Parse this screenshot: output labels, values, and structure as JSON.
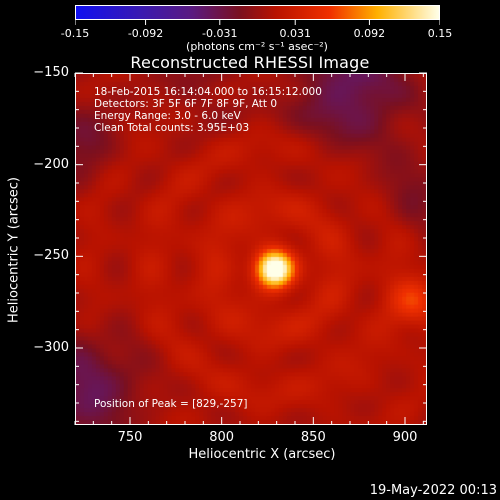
{
  "colorbar": {
    "labels": [
      "-0.15",
      "-0.092",
      "-0.031",
      "0.031",
      "0.092",
      "0.15"
    ],
    "units": "(photons cm⁻² s⁻¹ asec⁻²)"
  },
  "title": "Reconstructed RHESSI Image",
  "annotations": {
    "time_range": "18-Feb-2015 16:14:04.000 to 16:15:12.000",
    "detectors": "Detectors: 3F 5F 6F 7F 8F 9F, Att 0",
    "energy": "Energy Range: 3.0 - 6.0 keV",
    "clean": "Clean    Total counts: 3.95E+03",
    "peak": "Position of Peak = [829,-257]"
  },
  "axes": {
    "xlabel": "Heliocentric X (arcsec)",
    "ylabel": "Heliocentric Y (arcsec)",
    "xticks": [
      "750",
      "800",
      "850",
      "900"
    ],
    "yticks": [
      "-150",
      "-200",
      "-250",
      "-300"
    ],
    "xlim": [
      720,
      912
    ],
    "ylim": [
      -342,
      -150
    ]
  },
  "footer": {
    "date": "19-May-2022 00:13"
  },
  "image": {
    "type": "heatmap",
    "peak_position": [
      829,
      -257
    ],
    "colormap": "thermal (blue-purple-red-yellow-white)",
    "value_range": [
      -0.15,
      0.15
    ]
  }
}
